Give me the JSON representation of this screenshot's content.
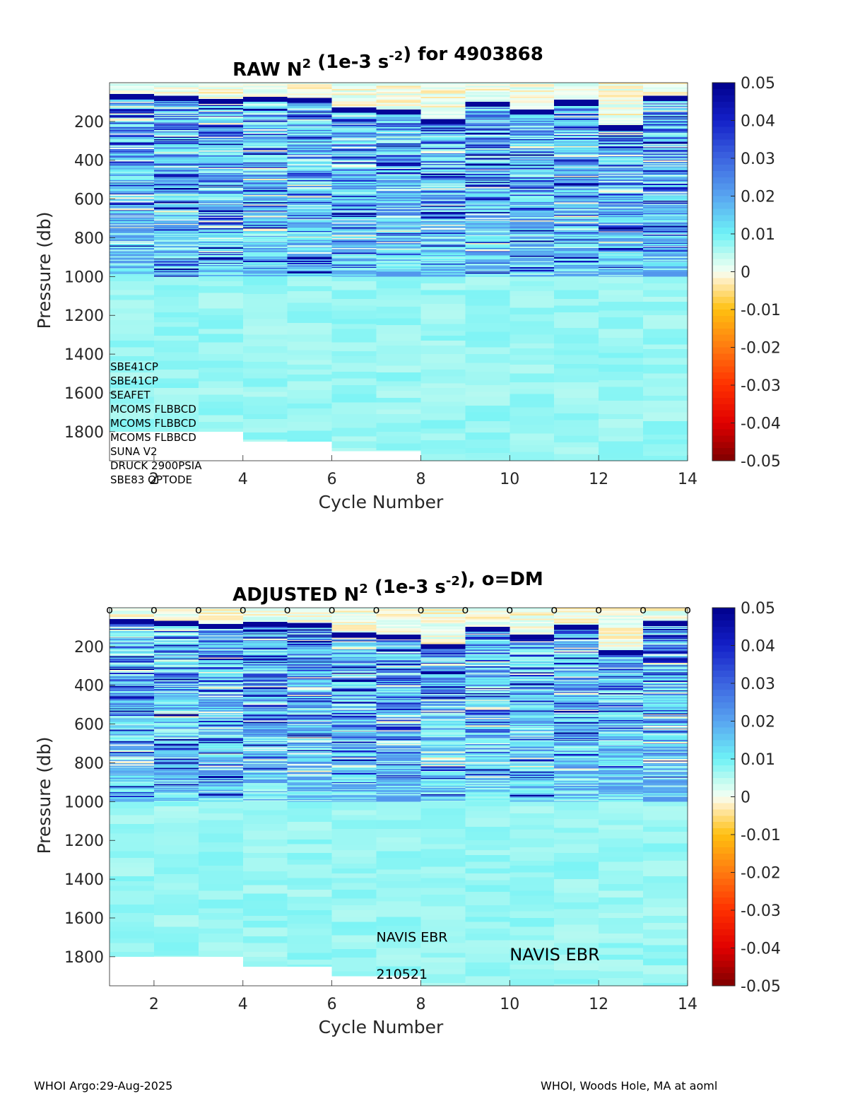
{
  "footer": {
    "left": "WHOI Argo:29-Aug-2025",
    "right": "WHOI, Woods Hole, MA at aoml"
  },
  "colormap": {
    "stops": [
      {
        "v": -0.05,
        "c": "#7f0000"
      },
      {
        "v": -0.04,
        "c": "#e00000"
      },
      {
        "v": -0.03,
        "c": "#ff3000"
      },
      {
        "v": -0.02,
        "c": "#ff7a10"
      },
      {
        "v": -0.01,
        "c": "#ffc010"
      },
      {
        "v": -0.002,
        "c": "#fff0c8"
      },
      {
        "v": 0.0,
        "c": "#f4fff4"
      },
      {
        "v": 0.004,
        "c": "#c4fbf0"
      },
      {
        "v": 0.01,
        "c": "#6ef2f6"
      },
      {
        "v": 0.02,
        "c": "#58a4f0"
      },
      {
        "v": 0.03,
        "c": "#3c64e0"
      },
      {
        "v": 0.04,
        "c": "#1420c8"
      },
      {
        "v": 0.05,
        "c": "#00008c"
      }
    ]
  },
  "chart_data": [
    {
      "type": "heatmap",
      "id": "raw",
      "title": {
        "prefix": "RAW N",
        "sup1": "2",
        "mid": " (1e-3 s",
        "sup2": "-2",
        "suffix": ") for 4903868"
      },
      "xlabel": "Cycle Number",
      "ylabel": "Pressure (db)",
      "xlim": [
        1,
        14
      ],
      "ylim": [
        0,
        1950
      ],
      "y_reversed": true,
      "xticks": [
        2,
        4,
        6,
        8,
        10,
        12,
        14
      ],
      "yticks": [
        200,
        400,
        600,
        800,
        1000,
        1200,
        1400,
        1600,
        1800
      ],
      "cycles": [
        1,
        2,
        3,
        4,
        5,
        6,
        7,
        8,
        9,
        10,
        11,
        12,
        13
      ],
      "max_pressure": [
        1800,
        1800,
        1800,
        1850,
        1850,
        1900,
        1900,
        1950,
        1950,
        1950,
        1950,
        1950,
        1950
      ],
      "mixed_layer_depth": [
        70,
        80,
        95,
        85,
        90,
        140,
        150,
        200,
        110,
        150,
        100,
        230,
        80
      ],
      "colorbar": {
        "ticks": [
          0.05,
          0.04,
          0.03,
          0.02,
          0.01,
          0,
          -0.01,
          -0.02,
          -0.03,
          -0.04,
          -0.05
        ]
      },
      "annotations": [
        "SBE41CP",
        "SBE41CP",
        "SEAFET",
        "MCOMS FLBBCD",
        "MCOMS FLBBCD",
        "MCOMS FLBBCD",
        "SUNA V2",
        "DRUCK 2900PSIA",
        "SBE83 OPTODE"
      ]
    },
    {
      "type": "heatmap",
      "id": "adjusted",
      "title": {
        "prefix": "ADJUSTED N",
        "sup1": "2",
        "mid": " (1e-3 s",
        "sup2": "-2",
        "suffix": "), o=DM"
      },
      "xlabel": "Cycle Number",
      "ylabel": "Pressure (db)",
      "xlim": [
        1,
        14
      ],
      "ylim": [
        0,
        1950
      ],
      "y_reversed": true,
      "xticks": [
        2,
        4,
        6,
        8,
        10,
        12,
        14
      ],
      "yticks": [
        200,
        400,
        600,
        800,
        1000,
        1200,
        1400,
        1600,
        1800
      ],
      "cycles": [
        1,
        2,
        3,
        4,
        5,
        6,
        7,
        8,
        9,
        10,
        11,
        12,
        13
      ],
      "max_pressure": [
        1800,
        1800,
        1800,
        1850,
        1850,
        1900,
        1900,
        1950,
        1950,
        1950,
        1950,
        1950,
        1950
      ],
      "mixed_layer_depth": [
        70,
        80,
        95,
        85,
        90,
        140,
        150,
        200,
        110,
        150,
        100,
        230,
        80
      ],
      "dm_markers": {
        "symbol": "o",
        "cycles": [
          1,
          2,
          3,
          4,
          5,
          6,
          7,
          8,
          9,
          10,
          11,
          12,
          13,
          14
        ]
      },
      "colorbar": {
        "ticks": [
          0.05,
          0.04,
          0.03,
          0.02,
          0.01,
          0,
          -0.01,
          -0.02,
          -0.03,
          -0.04,
          -0.05
        ]
      },
      "annotations": [
        {
          "text": "NAVIS EBR",
          "size": "small",
          "cycle": 7,
          "pressure": 1700
        },
        {
          "text": "210521",
          "size": "small",
          "cycle": 7,
          "pressure": 1890
        },
        {
          "text": "NAVIS EBR",
          "size": "large",
          "cycle": 10,
          "pressure": 1790
        }
      ]
    }
  ]
}
